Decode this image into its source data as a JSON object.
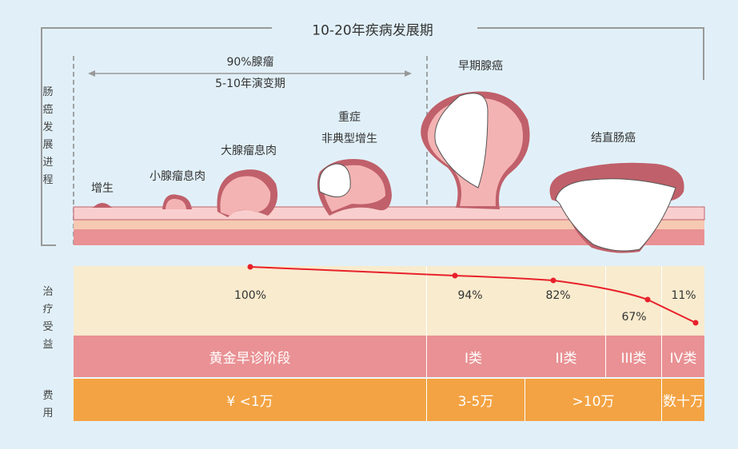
{
  "title": "10-20年疾病发展期",
  "side_labels": {
    "progress": "肠癌发展进程",
    "benefit": "治疗受益",
    "cost": "费用"
  },
  "range": {
    "line1": "90%腺瘤",
    "line2": "5-10年演变期"
  },
  "stages": [
    {
      "label": "增生"
    },
    {
      "label": "小腺瘤息肉"
    },
    {
      "label": "大腺瘤息肉"
    },
    {
      "label": "重症",
      "label2": "非典型增生"
    },
    {
      "label": "早期腺癌"
    },
    {
      "label": "结直肠癌"
    }
  ],
  "benefit": [
    {
      "value": 100,
      "label": "100%"
    },
    {
      "value": 94,
      "label": "94%"
    },
    {
      "value": 82,
      "label": "82%"
    },
    {
      "value": 67,
      "label": "67%"
    },
    {
      "value": 11,
      "label": "11%"
    }
  ],
  "categories": [
    "黄金早诊阶段",
    "I类",
    "II类",
    "III类",
    "IV类"
  ],
  "costs": [
    "¥ <1万",
    "3-5万",
    ">10万",
    "数十万"
  ],
  "colors": {
    "background": "#e1f0f8",
    "benefit_row": "#f8ebce",
    "category_row": "#e99194",
    "cost_row": "#f3a343",
    "curve": "#e8212b"
  }
}
